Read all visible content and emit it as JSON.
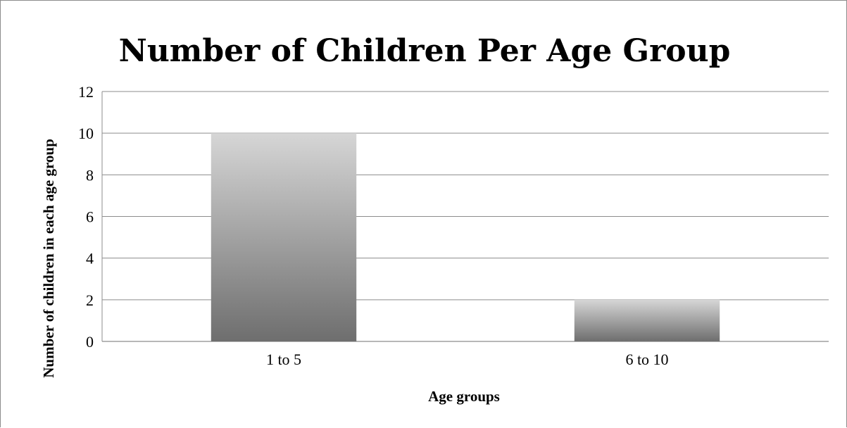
{
  "chart_data": {
    "type": "bar",
    "title": "Number of Children Per Age Group",
    "xlabel": "Age groups",
    "ylabel": "Number of children in each age group",
    "categories": [
      "1 to 5",
      "6 to 10"
    ],
    "values": [
      10,
      2
    ],
    "ylim": [
      0,
      12
    ],
    "yticks": [
      "0",
      "2",
      "4",
      "6",
      "8",
      "10",
      "12"
    ],
    "grid": true,
    "legend": "none",
    "colors": {
      "bar_top": "#d6d6d6",
      "bar_bottom": "#6e6e6e",
      "grid": "#8c8c8c"
    }
  }
}
